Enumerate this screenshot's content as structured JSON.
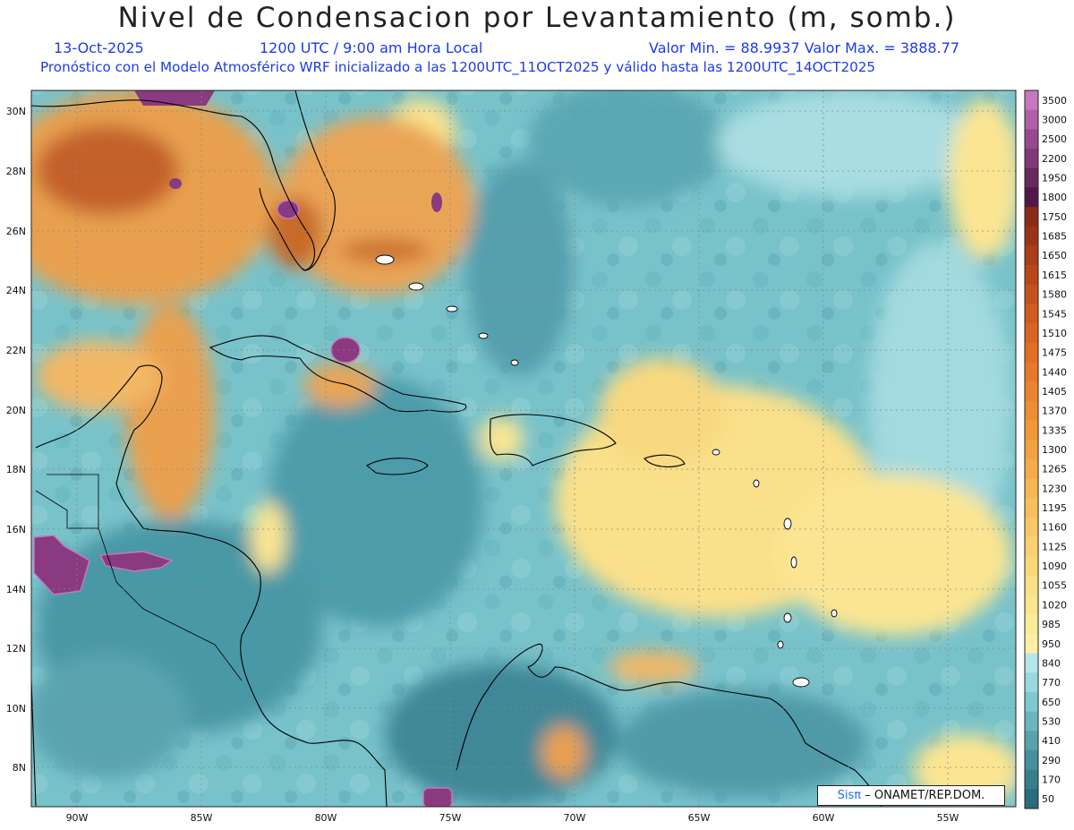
{
  "header": {
    "title": "Nivel de Condensacion por Levantamiento (m, somb.)",
    "date": "13-Oct-2025",
    "time": "1200 UTC / 9:00 am Hora Local",
    "minmax": "Valor Min. = 88.9937  Valor Max. = 3888.77",
    "model_info": "Pronóstico con el Modelo Atmosférico WRF inicializado a las 1200UTC_11OCT2025 y válido hasta las  1200UTC_14OCT2025"
  },
  "axes": {
    "lat_labels": [
      "30N",
      "28N",
      "26N",
      "24N",
      "22N",
      "20N",
      "18N",
      "16N",
      "14N",
      "12N",
      "10N",
      "8N"
    ],
    "lon_labels": [
      "90W",
      "85W",
      "80W",
      "75W",
      "70W",
      "65W",
      "60W",
      "55W"
    ]
  },
  "colorbar": {
    "levels": [
      "3500",
      "3000",
      "2500",
      "2200",
      "1950",
      "1800",
      "1750",
      "1685",
      "1650",
      "1615",
      "1580",
      "1545",
      "1510",
      "1475",
      "1440",
      "1405",
      "1370",
      "1335",
      "1300",
      "1265",
      "1230",
      "1195",
      "1160",
      "1125",
      "1090",
      "1055",
      "1020",
      "985",
      "950",
      "840",
      "770",
      "650",
      "530",
      "410",
      "290",
      "170",
      "50"
    ],
    "colors": [
      "#c878c0",
      "#b060a8",
      "#984890",
      "#803878",
      "#682860",
      "#501848",
      "#8a2a18",
      "#9a3418",
      "#aa3e1a",
      "#b8481c",
      "#c4521e",
      "#ce5c20",
      "#d86622",
      "#e07026",
      "#e67a2a",
      "#ea842e",
      "#ee8e34",
      "#f0983a",
      "#f2a242",
      "#f4ac4a",
      "#f6b652",
      "#f8c05c",
      "#f8c866",
      "#fad070",
      "#fad87a",
      "#fadf84",
      "#fbe58e",
      "#fceb98",
      "#fdf0a2",
      "#b4e6ea",
      "#98d8de",
      "#80c8d0",
      "#6ab6c0",
      "#56a2ae",
      "#44909c",
      "#367e8c",
      "#2a6c7c"
    ]
  },
  "credit": {
    "brand": "Sisπ",
    "text": "– ONAMET/REP.DOM."
  }
}
